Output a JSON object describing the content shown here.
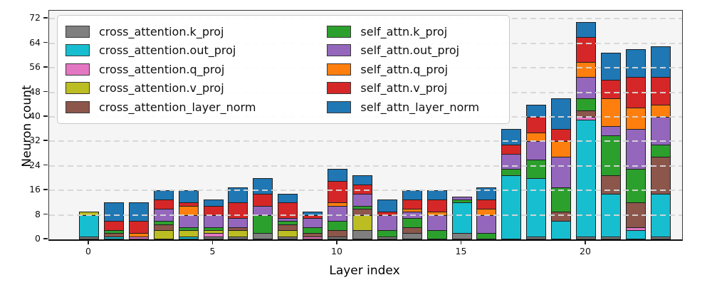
{
  "chart_data": {
    "type": "bar",
    "stacked": true,
    "title": "",
    "xlabel": "Layer index",
    "ylabel": "Neuron count",
    "x": [
      0,
      1,
      2,
      3,
      4,
      5,
      6,
      7,
      8,
      9,
      10,
      11,
      12,
      13,
      14,
      15,
      16,
      17,
      18,
      19,
      20,
      21,
      22,
      23
    ],
    "xticks": [
      0,
      5,
      10,
      15,
      20
    ],
    "yticks": [
      0,
      8,
      16,
      24,
      32,
      40,
      48,
      56,
      64,
      72
    ],
    "ylim": [
      0,
      74.5
    ],
    "grid": "horizontal-dashed",
    "legend_position": "upper-left-2-columns",
    "series": [
      {
        "name": "cross_attention.k_proj",
        "color": "#7f7f7f",
        "values": [
          1,
          0,
          0,
          0,
          0,
          1,
          1,
          2,
          1,
          0,
          1,
          3,
          1,
          2,
          0,
          2,
          0,
          0,
          1,
          0,
          1,
          1,
          0,
          1
        ]
      },
      {
        "name": "cross_attention.out_proj",
        "color": "#17becf",
        "values": [
          7,
          1,
          0,
          0,
          1,
          0,
          0,
          0,
          0,
          0,
          0,
          0,
          0,
          0,
          0,
          10,
          0,
          21,
          19,
          6,
          38,
          14,
          3,
          14
        ]
      },
      {
        "name": "cross_attention.q_proj",
        "color": "#e377c2",
        "values": [
          0,
          0,
          1,
          0,
          0,
          1,
          0,
          0,
          0,
          1,
          0,
          0,
          0,
          0,
          0,
          0,
          0,
          0,
          0,
          0,
          1,
          0,
          1,
          0
        ]
      },
      {
        "name": "cross_attention.v_proj",
        "color": "#bcbd22",
        "values": [
          1,
          0,
          0,
          3,
          2,
          1,
          2,
          0,
          2,
          0,
          0,
          5,
          0,
          0,
          0,
          0,
          0,
          0,
          0,
          0,
          0,
          0,
          0,
          0
        ]
      },
      {
        "name": "cross_attention_layer_norm",
        "color": "#8c564b",
        "values": [
          0,
          1,
          0,
          2,
          0,
          0,
          1,
          0,
          2,
          1,
          2,
          2,
          0,
          2,
          0,
          0,
          0,
          0,
          0,
          3,
          2,
          6,
          8,
          12
        ]
      },
      {
        "name": "self_attn.k_proj",
        "color": "#2ca02c",
        "values": [
          0,
          1,
          0,
          1,
          1,
          1,
          0,
          6,
          1,
          2,
          3,
          1,
          2,
          3,
          3,
          1,
          2,
          2,
          6,
          8,
          4,
          13,
          11,
          4
        ]
      },
      {
        "name": "self_attn.out_proj",
        "color": "#9467bd",
        "values": [
          0,
          0,
          0,
          4,
          4,
          4,
          3,
          3,
          1,
          3,
          5,
          4,
          5,
          2,
          5,
          1,
          6,
          5,
          6,
          10,
          7,
          3,
          13,
          9
        ]
      },
      {
        "name": "self_attn.q_proj",
        "color": "#ff7f0e",
        "values": [
          0,
          0,
          1,
          0,
          3,
          0,
          0,
          0,
          0,
          0,
          1,
          0,
          0,
          1,
          1,
          0,
          2,
          0,
          3,
          5,
          5,
          9,
          7,
          4
        ]
      },
      {
        "name": "self_attn.v_proj",
        "color": "#d62728",
        "values": [
          0,
          3,
          4,
          3,
          1,
          3,
          5,
          4,
          5,
          1,
          7,
          3,
          1,
          3,
          4,
          0,
          3,
          3,
          5,
          4,
          8,
          6,
          10,
          9
        ]
      },
      {
        "name": "self_attn_layer_norm",
        "color": "#1f77b4",
        "values": [
          0,
          6,
          6,
          3,
          4,
          2,
          5,
          5,
          3,
          1,
          4,
          3,
          4,
          3,
          3,
          0,
          4,
          5,
          4,
          10,
          5,
          9,
          9,
          10
        ]
      }
    ]
  }
}
